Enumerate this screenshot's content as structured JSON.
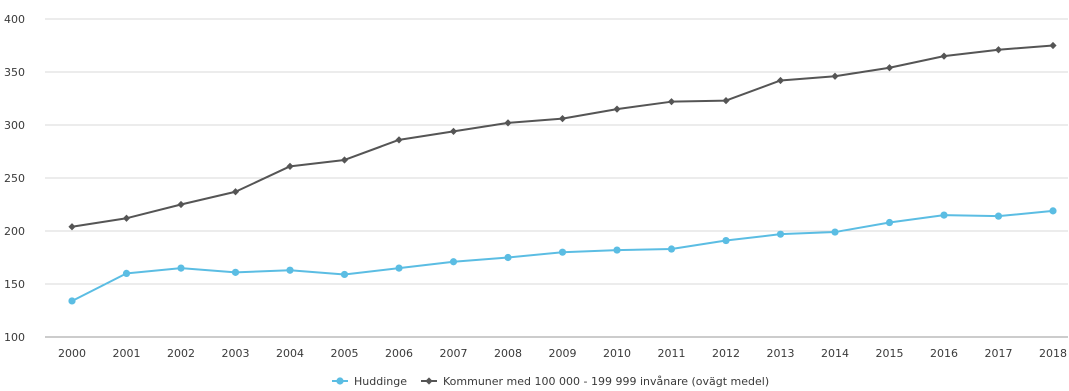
{
  "chart_data": {
    "type": "line",
    "x": [
      "2000",
      "2001",
      "2002",
      "2003",
      "2004",
      "2005",
      "2006",
      "2007",
      "2008",
      "2009",
      "2010",
      "2011",
      "2012",
      "2013",
      "2014",
      "2015",
      "2016",
      "2017",
      "2018"
    ],
    "ylim": [
      100,
      400
    ],
    "yticks": [
      100,
      150,
      200,
      250,
      300,
      350,
      400
    ],
    "grid": true,
    "legend_position": "bottom-center",
    "series": [
      {
        "name": "Huddinge",
        "color": "#5bbde3",
        "marker": "circle",
        "values": [
          134,
          160,
          165,
          161,
          163,
          159,
          165,
          171,
          175,
          180,
          182,
          183,
          191,
          197,
          199,
          208,
          215,
          214,
          219
        ]
      },
      {
        "name": "Kommuner med 100 000 - 199 999 invånare (ovägt medel)",
        "color": "#555555",
        "marker": "diamond",
        "values": [
          204,
          212,
          225,
          237,
          261,
          267,
          286,
          294,
          302,
          306,
          315,
          322,
          323,
          342,
          346,
          354,
          365,
          371,
          375
        ]
      }
    ]
  }
}
